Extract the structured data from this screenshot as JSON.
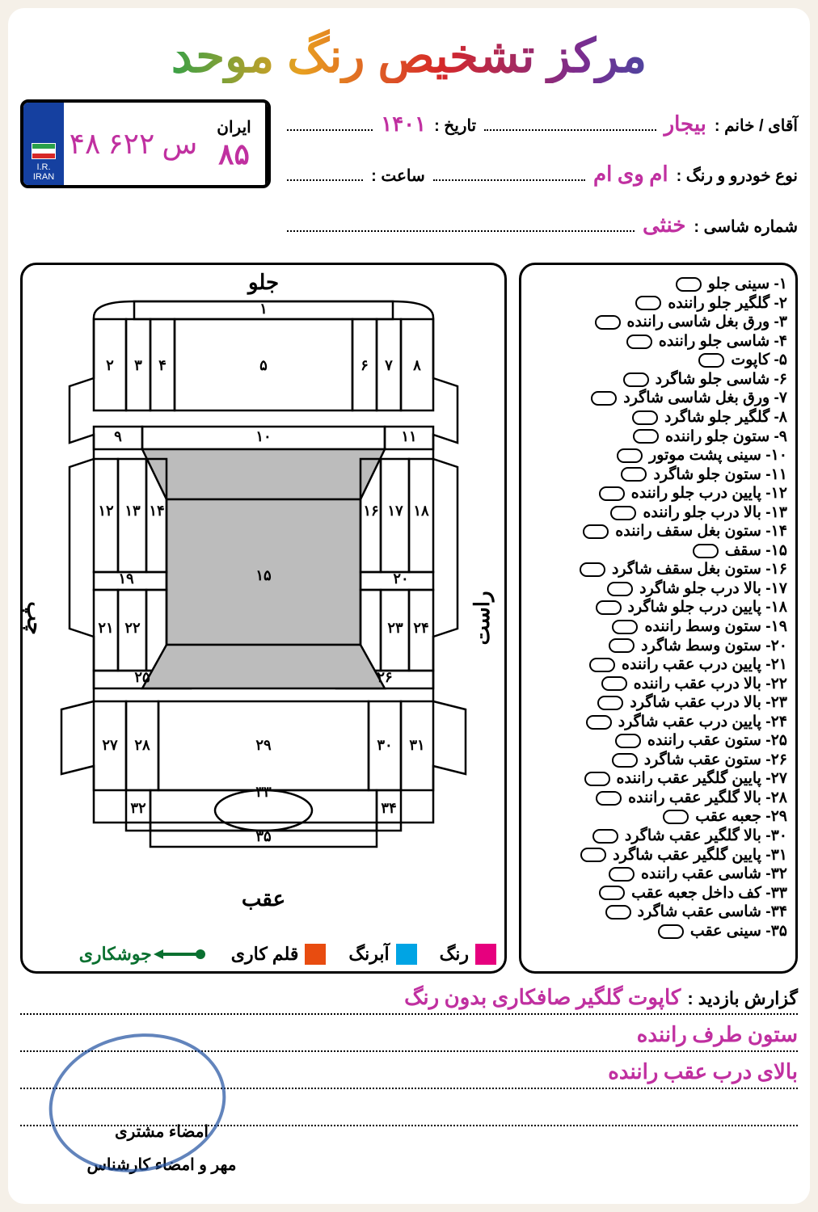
{
  "title": "مرکز تشخیص رنگ موحد",
  "title_gradient_colors": [
    "#1e5fb0",
    "#2aa04a",
    "#e8a020",
    "#d62828",
    "#7b2c8f",
    "#1e5fb0"
  ],
  "info": {
    "name_label": "آقای / خانم :",
    "date_label": "تاریخ :",
    "car_label": "نوع خودرو و رنگ :",
    "time_label": "ساعت :",
    "chassis_label": "شماره شاسی :",
    "name_value": "بیجار",
    "date_value": "۱۴۰۱",
    "car_value": "ام وی ام",
    "time_value": "",
    "chassis_value": "خنثی"
  },
  "plate": {
    "iran_label": "ایران",
    "iran_code": "۸۵",
    "number": "۴۸ س ۶۲۲",
    "ir_text": "I.R.\nIRAN"
  },
  "diagram": {
    "front_label": "جلو",
    "rear_label": "عقب",
    "right_label": "راست",
    "left_label": "چپ",
    "part_numbers_fa": [
      "۱",
      "۲",
      "۳",
      "۴",
      "۵",
      "۶",
      "۷",
      "۸",
      "۹",
      "۱۰",
      "۱۱",
      "۱۲",
      "۱۳",
      "۱۴",
      "۱۵",
      "۱۶",
      "۱۷",
      "۱۸",
      "۱۹",
      "۲۰",
      "۲۱",
      "۲۲",
      "۲۳",
      "۲۴",
      "۲۵",
      "۲۶",
      "۲۷",
      "۲۸",
      "۲۹",
      "۳۰",
      "۳۱",
      "۳۲",
      "۳۳",
      "۳۴",
      "۳۵"
    ],
    "roof_fill": "#bcbcbc",
    "glass_fill": "#bcbcbc",
    "stroke": "#000000"
  },
  "parts": [
    "۱- سینی جلو",
    "۲- گلگیر جلو راننده",
    "۳- ورق بغل شاسی راننده",
    "۴- شاسی جلو راننده",
    "۵- کاپوت",
    "۶- شاسی جلو شاگرد",
    "۷- ورق بغل شاسی شاگرد",
    "۸- گلگیر جلو شاگرد",
    "۹- ستون جلو راننده",
    "۱۰- سینی پشت موتور",
    "۱۱- ستون جلو شاگرد",
    "۱۲- پایین درب جلو راننده",
    "۱۳- بالا درب جلو راننده",
    "۱۴- ستون بغل سقف راننده",
    "۱۵- سقف",
    "۱۶- ستون بغل سقف شاگرد",
    "۱۷- بالا درب جلو شاگرد",
    "۱۸- پایین درب جلو شاگرد",
    "۱۹- ستون وسط راننده",
    "۲۰- ستون وسط شاگرد",
    "۲۱- پایین درب عقب راننده",
    "۲۲- بالا درب عقب راننده",
    "۲۳- بالا درب عقب شاگرد",
    "۲۴- پایین درب عقب شاگرد",
    "۲۵- ستون عقب راننده",
    "۲۶- ستون عقب شاگرد",
    "۲۷- پایین گلگیر عقب راننده",
    "۲۸- بالا گلگیر عقب راننده",
    "۲۹- جعبه عقب",
    "۳۰- بالا گلگیر عقب شاگرد",
    "۳۱- پایین گلگیر عقب شاگرد",
    "۳۲- شاسی عقب راننده",
    "۳۳- کف داخل جعبه عقب",
    "۳۴- شاسی عقب شاگرد",
    "۳۵- سینی عقب"
  ],
  "legend": {
    "items": [
      {
        "label": "رنگ",
        "color": "#e6007e"
      },
      {
        "label": "آبرنگ",
        "color": "#00a4e4"
      },
      {
        "label": "قلم کاری",
        "color": "#e84c10"
      }
    ],
    "weld_label": "جوشکاری",
    "weld_color": "#0a7030"
  },
  "report": {
    "label": "گزارش بازدید :",
    "handwriting_lines": [
      "کاپوت گلگیر صافکاری بدون رنگ",
      "ستون طرف راننده",
      "بالای درب عقب راننده",
      ""
    ]
  },
  "signatures": {
    "customer": "امضاء مشتری",
    "expert": "مهر و امضاء کارشناس"
  },
  "colors": {
    "background": "#f5f0e8",
    "paper": "#ffffff",
    "handwriting": "#c030a0",
    "stamp": "#2050a0"
  }
}
